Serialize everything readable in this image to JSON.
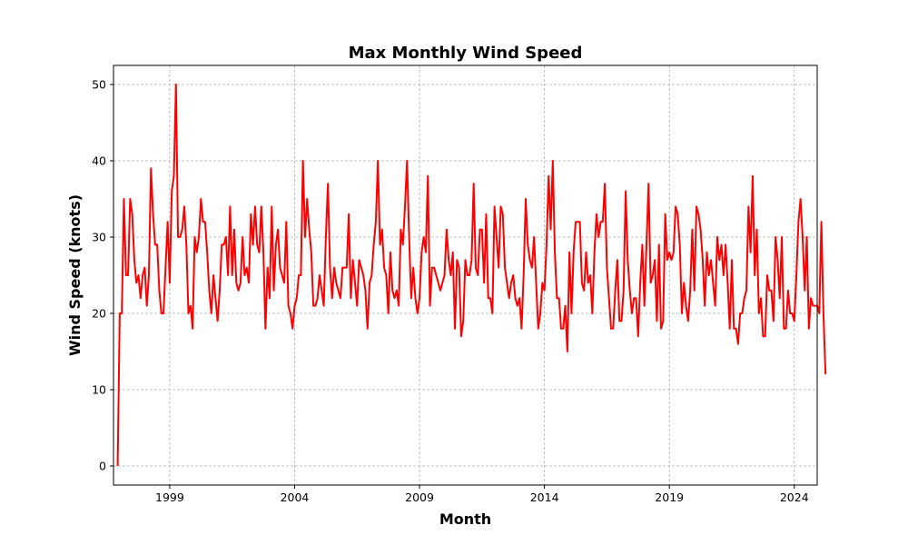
{
  "chart_data": {
    "type": "line",
    "title": "Max Monthly Wind Speed",
    "xlabel": "Month",
    "ylabel": "Wind Speed (knots)",
    "x_start": "1996-12",
    "x_ticks": [
      "1999",
      "2004",
      "2009",
      "2014",
      "2019",
      "2024"
    ],
    "y_ticks": [
      0,
      10,
      20,
      30,
      40,
      50
    ],
    "xlim": [
      "1996-10",
      "2024-12"
    ],
    "ylim": [
      -2.5,
      52.5
    ],
    "grid": true,
    "series": [
      {
        "color": "#ff0000",
        "values": [
          0,
          20,
          20,
          35,
          25,
          25,
          35,
          33,
          27,
          24,
          25,
          22,
          25,
          26,
          21,
          25,
          39,
          33,
          29,
          29,
          23,
          20,
          20,
          26,
          32,
          24,
          36,
          38,
          50,
          30,
          30,
          31,
          34,
          29,
          20,
          21,
          18,
          30,
          28,
          30,
          35,
          32,
          32,
          28,
          23,
          20,
          25,
          22,
          19,
          23,
          29,
          29,
          30,
          25,
          34,
          25,
          31,
          24,
          23,
          24,
          30,
          25,
          26,
          24,
          33,
          29,
          34,
          29,
          28,
          34,
          28,
          18,
          26,
          22,
          34,
          23,
          29,
          31,
          26,
          25,
          24,
          32,
          21,
          20,
          18,
          21,
          22,
          25,
          25,
          40,
          30,
          35,
          31,
          28,
          21,
          21,
          22,
          25,
          23,
          21,
          30,
          37,
          26,
          22,
          26,
          24,
          23,
          22,
          26,
          26,
          26,
          33,
          22,
          27,
          24,
          21,
          27,
          26,
          25,
          23,
          18,
          24,
          25,
          29,
          32,
          40,
          29,
          31,
          26,
          25,
          20,
          28,
          23,
          22,
          23,
          21,
          31,
          29,
          34,
          40,
          30,
          22,
          26,
          22,
          20,
          22,
          28,
          30,
          28,
          38,
          21,
          26,
          26,
          25,
          24,
          23,
          24,
          25,
          31,
          27,
          25,
          28,
          18,
          27,
          26,
          17,
          19,
          27,
          25,
          25,
          27,
          37,
          26,
          25,
          31,
          31,
          24,
          33,
          22,
          22,
          20,
          34,
          30,
          26,
          34,
          33,
          26,
          24,
          22,
          24,
          25,
          22,
          21,
          22,
          18,
          25,
          35,
          29,
          27,
          26,
          30,
          24,
          18,
          20,
          24,
          23,
          29,
          38,
          31,
          40,
          28,
          22,
          22,
          18,
          18,
          21,
          15,
          28,
          20,
          28,
          32,
          32,
          32,
          24,
          23,
          28,
          24,
          25,
          20,
          28,
          33,
          30,
          32,
          32,
          37,
          26,
          22,
          18,
          18,
          23,
          27,
          19,
          19,
          23,
          36,
          27,
          23,
          20,
          22,
          22,
          17,
          24,
          29,
          21,
          29,
          37,
          24,
          25,
          27,
          19,
          29,
          18,
          19,
          33,
          27,
          28,
          27,
          28,
          34,
          33,
          29,
          20,
          24,
          21,
          19,
          23,
          31,
          23,
          34,
          33,
          31,
          27,
          21,
          28,
          25,
          27,
          24,
          21,
          30,
          27,
          29,
          25,
          29,
          24,
          18,
          27,
          18,
          18,
          16,
          20,
          20,
          22,
          23,
          34,
          28,
          38,
          25,
          31,
          20,
          22,
          17,
          17,
          25,
          23,
          23,
          19,
          30,
          27,
          22,
          30,
          18,
          18,
          23,
          20,
          20,
          19,
          25,
          32,
          35,
          30,
          23,
          30,
          18,
          22,
          21,
          21,
          21,
          20,
          32,
          20,
          12
        ]
      }
    ]
  }
}
